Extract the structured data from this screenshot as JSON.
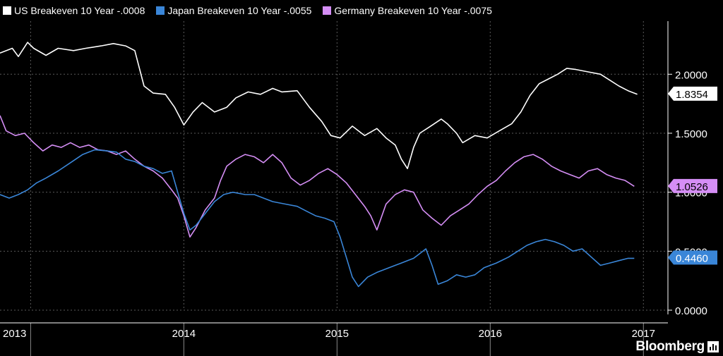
{
  "brand": "Bloomberg",
  "chart_data": {
    "type": "line",
    "title": "",
    "xlabel": "",
    "ylabel": "",
    "ylim": [
      0.0,
      2.45
    ],
    "xlim": [
      2013.0,
      2017.36
    ],
    "y_ticks": [
      {
        "value": 0.0,
        "label": "0.0000"
      },
      {
        "value": 0.5,
        "label": "0.5000"
      },
      {
        "value": 1.0,
        "label": "1.0000"
      },
      {
        "value": 1.5,
        "label": "1.5000"
      },
      {
        "value": 2.0,
        "label": "2.0000"
      }
    ],
    "x_ticks": [
      {
        "value": 2013.0,
        "label": "2013"
      },
      {
        "value": 2014.0,
        "label": "2014"
      },
      {
        "value": 2015.0,
        "label": "2015"
      },
      {
        "value": 2016.0,
        "label": "2016"
      },
      {
        "value": 2017.0,
        "label": "2017"
      }
    ],
    "year_boundaries": [
      2013.2,
      2014.2,
      2015.2,
      2016.2,
      2017.2
    ],
    "grid": true,
    "legend_position": "top-left",
    "series": [
      {
        "name": "US Breakeven 10 Year",
        "change": "-.0008",
        "color": "#ffffff",
        "last_value": 1.8354,
        "last_label": "1.8354",
        "points": [
          [
            2013.0,
            2.18
          ],
          [
            2013.08,
            2.22
          ],
          [
            2013.12,
            2.15
          ],
          [
            2013.18,
            2.27
          ],
          [
            2013.22,
            2.22
          ],
          [
            2013.3,
            2.16
          ],
          [
            2013.38,
            2.22
          ],
          [
            2013.48,
            2.2
          ],
          [
            2013.56,
            2.22
          ],
          [
            2013.66,
            2.24
          ],
          [
            2013.74,
            2.26
          ],
          [
            2013.82,
            2.24
          ],
          [
            2013.88,
            2.2
          ],
          [
            2013.94,
            1.9
          ],
          [
            2014.0,
            1.84
          ],
          [
            2014.08,
            1.83
          ],
          [
            2014.14,
            1.72
          ],
          [
            2014.2,
            1.57
          ],
          [
            2014.26,
            1.68
          ],
          [
            2014.32,
            1.76
          ],
          [
            2014.4,
            1.68
          ],
          [
            2014.48,
            1.72
          ],
          [
            2014.54,
            1.8
          ],
          [
            2014.62,
            1.85
          ],
          [
            2014.7,
            1.83
          ],
          [
            2014.78,
            1.88
          ],
          [
            2014.84,
            1.85
          ],
          [
            2014.94,
            1.86
          ],
          [
            2015.02,
            1.72
          ],
          [
            2015.1,
            1.6
          ],
          [
            2015.16,
            1.48
          ],
          [
            2015.22,
            1.46
          ],
          [
            2015.3,
            1.56
          ],
          [
            2015.38,
            1.48
          ],
          [
            2015.46,
            1.54
          ],
          [
            2015.52,
            1.46
          ],
          [
            2015.58,
            1.4
          ],
          [
            2015.62,
            1.28
          ],
          [
            2015.66,
            1.2
          ],
          [
            2015.7,
            1.38
          ],
          [
            2015.74,
            1.5
          ],
          [
            2015.8,
            1.55
          ],
          [
            2015.88,
            1.62
          ],
          [
            2015.92,
            1.58
          ],
          [
            2015.98,
            1.5
          ],
          [
            2016.02,
            1.42
          ],
          [
            2016.1,
            1.48
          ],
          [
            2016.18,
            1.46
          ],
          [
            2016.26,
            1.52
          ],
          [
            2016.34,
            1.58
          ],
          [
            2016.4,
            1.68
          ],
          [
            2016.46,
            1.82
          ],
          [
            2016.52,
            1.92
          ],
          [
            2016.58,
            1.96
          ],
          [
            2016.64,
            2.0
          ],
          [
            2016.7,
            2.05
          ],
          [
            2016.76,
            2.04
          ],
          [
            2016.84,
            2.02
          ],
          [
            2016.92,
            2.0
          ],
          [
            2016.98,
            1.95
          ],
          [
            2017.04,
            1.9
          ],
          [
            2017.1,
            1.86
          ],
          [
            2017.16,
            1.83
          ]
        ]
      },
      {
        "name": "Japan Breakeven 10 Year",
        "change": "-.0055",
        "color": "#3a86d8",
        "last_value": 0.446,
        "last_label": "0.4460",
        "points": [
          [
            2013.0,
            0.98
          ],
          [
            2013.06,
            0.95
          ],
          [
            2013.12,
            0.98
          ],
          [
            2013.18,
            1.02
          ],
          [
            2013.24,
            1.08
          ],
          [
            2013.3,
            1.12
          ],
          [
            2013.38,
            1.18
          ],
          [
            2013.46,
            1.25
          ],
          [
            2013.54,
            1.32
          ],
          [
            2013.62,
            1.36
          ],
          [
            2013.7,
            1.35
          ],
          [
            2013.76,
            1.34
          ],
          [
            2013.82,
            1.28
          ],
          [
            2013.88,
            1.26
          ],
          [
            2013.94,
            1.22
          ],
          [
            2014.0,
            1.2
          ],
          [
            2014.06,
            1.16
          ],
          [
            2014.12,
            1.18
          ],
          [
            2014.16,
            1.0
          ],
          [
            2014.2,
            0.82
          ],
          [
            2014.24,
            0.68
          ],
          [
            2014.28,
            0.72
          ],
          [
            2014.34,
            0.82
          ],
          [
            2014.4,
            0.92
          ],
          [
            2014.46,
            0.98
          ],
          [
            2014.52,
            1.0
          ],
          [
            2014.6,
            0.98
          ],
          [
            2014.66,
            0.98
          ],
          [
            2014.72,
            0.95
          ],
          [
            2014.78,
            0.92
          ],
          [
            2014.86,
            0.9
          ],
          [
            2014.94,
            0.88
          ],
          [
            2015.0,
            0.84
          ],
          [
            2015.06,
            0.8
          ],
          [
            2015.12,
            0.78
          ],
          [
            2015.18,
            0.75
          ],
          [
            2015.22,
            0.62
          ],
          [
            2015.26,
            0.45
          ],
          [
            2015.3,
            0.28
          ],
          [
            2015.34,
            0.2
          ],
          [
            2015.4,
            0.28
          ],
          [
            2015.46,
            0.32
          ],
          [
            2015.52,
            0.35
          ],
          [
            2015.58,
            0.38
          ],
          [
            2015.62,
            0.4
          ],
          [
            2015.66,
            0.42
          ],
          [
            2015.7,
            0.44
          ],
          [
            2015.74,
            0.48
          ],
          [
            2015.78,
            0.52
          ],
          [
            2015.82,
            0.38
          ],
          [
            2015.86,
            0.22
          ],
          [
            2015.92,
            0.25
          ],
          [
            2015.98,
            0.3
          ],
          [
            2016.04,
            0.28
          ],
          [
            2016.1,
            0.3
          ],
          [
            2016.16,
            0.36
          ],
          [
            2016.24,
            0.4
          ],
          [
            2016.32,
            0.45
          ],
          [
            2016.38,
            0.5
          ],
          [
            2016.44,
            0.55
          ],
          [
            2016.5,
            0.58
          ],
          [
            2016.56,
            0.6
          ],
          [
            2016.62,
            0.58
          ],
          [
            2016.68,
            0.55
          ],
          [
            2016.74,
            0.5
          ],
          [
            2016.8,
            0.52
          ],
          [
            2016.86,
            0.45
          ],
          [
            2016.92,
            0.38
          ],
          [
            2016.98,
            0.4
          ],
          [
            2017.04,
            0.42
          ],
          [
            2017.1,
            0.44
          ],
          [
            2017.14,
            0.44
          ]
        ]
      },
      {
        "name": "Germany Breakeven 10 Year",
        "change": "-.0075",
        "color": "#d58ef5",
        "last_value": 1.0526,
        "last_label": "1.0526",
        "points": [
          [
            2013.0,
            1.65
          ],
          [
            2013.04,
            1.52
          ],
          [
            2013.1,
            1.48
          ],
          [
            2013.16,
            1.5
          ],
          [
            2013.22,
            1.42
          ],
          [
            2013.28,
            1.35
          ],
          [
            2013.34,
            1.4
          ],
          [
            2013.4,
            1.38
          ],
          [
            2013.46,
            1.42
          ],
          [
            2013.52,
            1.38
          ],
          [
            2013.58,
            1.4
          ],
          [
            2013.64,
            1.36
          ],
          [
            2013.7,
            1.35
          ],
          [
            2013.76,
            1.32
          ],
          [
            2013.82,
            1.35
          ],
          [
            2013.88,
            1.28
          ],
          [
            2013.94,
            1.22
          ],
          [
            2014.0,
            1.18
          ],
          [
            2014.06,
            1.12
          ],
          [
            2014.12,
            1.02
          ],
          [
            2014.16,
            0.95
          ],
          [
            2014.2,
            0.8
          ],
          [
            2014.24,
            0.62
          ],
          [
            2014.28,
            0.7
          ],
          [
            2014.34,
            0.85
          ],
          [
            2014.4,
            0.95
          ],
          [
            2014.44,
            1.1
          ],
          [
            2014.48,
            1.22
          ],
          [
            2014.54,
            1.28
          ],
          [
            2014.6,
            1.32
          ],
          [
            2014.66,
            1.3
          ],
          [
            2014.72,
            1.25
          ],
          [
            2014.78,
            1.32
          ],
          [
            2014.84,
            1.25
          ],
          [
            2014.9,
            1.12
          ],
          [
            2014.96,
            1.06
          ],
          [
            2015.02,
            1.1
          ],
          [
            2015.08,
            1.16
          ],
          [
            2015.14,
            1.2
          ],
          [
            2015.2,
            1.15
          ],
          [
            2015.26,
            1.08
          ],
          [
            2015.32,
            0.98
          ],
          [
            2015.38,
            0.88
          ],
          [
            2015.42,
            0.8
          ],
          [
            2015.46,
            0.68
          ],
          [
            2015.52,
            0.9
          ],
          [
            2015.58,
            0.98
          ],
          [
            2015.64,
            1.02
          ],
          [
            2015.7,
            1.0
          ],
          [
            2015.76,
            0.85
          ],
          [
            2015.82,
            0.78
          ],
          [
            2015.88,
            0.72
          ],
          [
            2015.94,
            0.8
          ],
          [
            2016.0,
            0.85
          ],
          [
            2016.06,
            0.9
          ],
          [
            2016.12,
            0.98
          ],
          [
            2016.18,
            1.05
          ],
          [
            2016.24,
            1.1
          ],
          [
            2016.3,
            1.18
          ],
          [
            2016.36,
            1.25
          ],
          [
            2016.42,
            1.3
          ],
          [
            2016.48,
            1.32
          ],
          [
            2016.54,
            1.28
          ],
          [
            2016.6,
            1.22
          ],
          [
            2016.66,
            1.18
          ],
          [
            2016.72,
            1.15
          ],
          [
            2016.78,
            1.12
          ],
          [
            2016.84,
            1.18
          ],
          [
            2016.9,
            1.2
          ],
          [
            2016.96,
            1.15
          ],
          [
            2017.02,
            1.12
          ],
          [
            2017.08,
            1.1
          ],
          [
            2017.14,
            1.05
          ]
        ]
      }
    ]
  }
}
